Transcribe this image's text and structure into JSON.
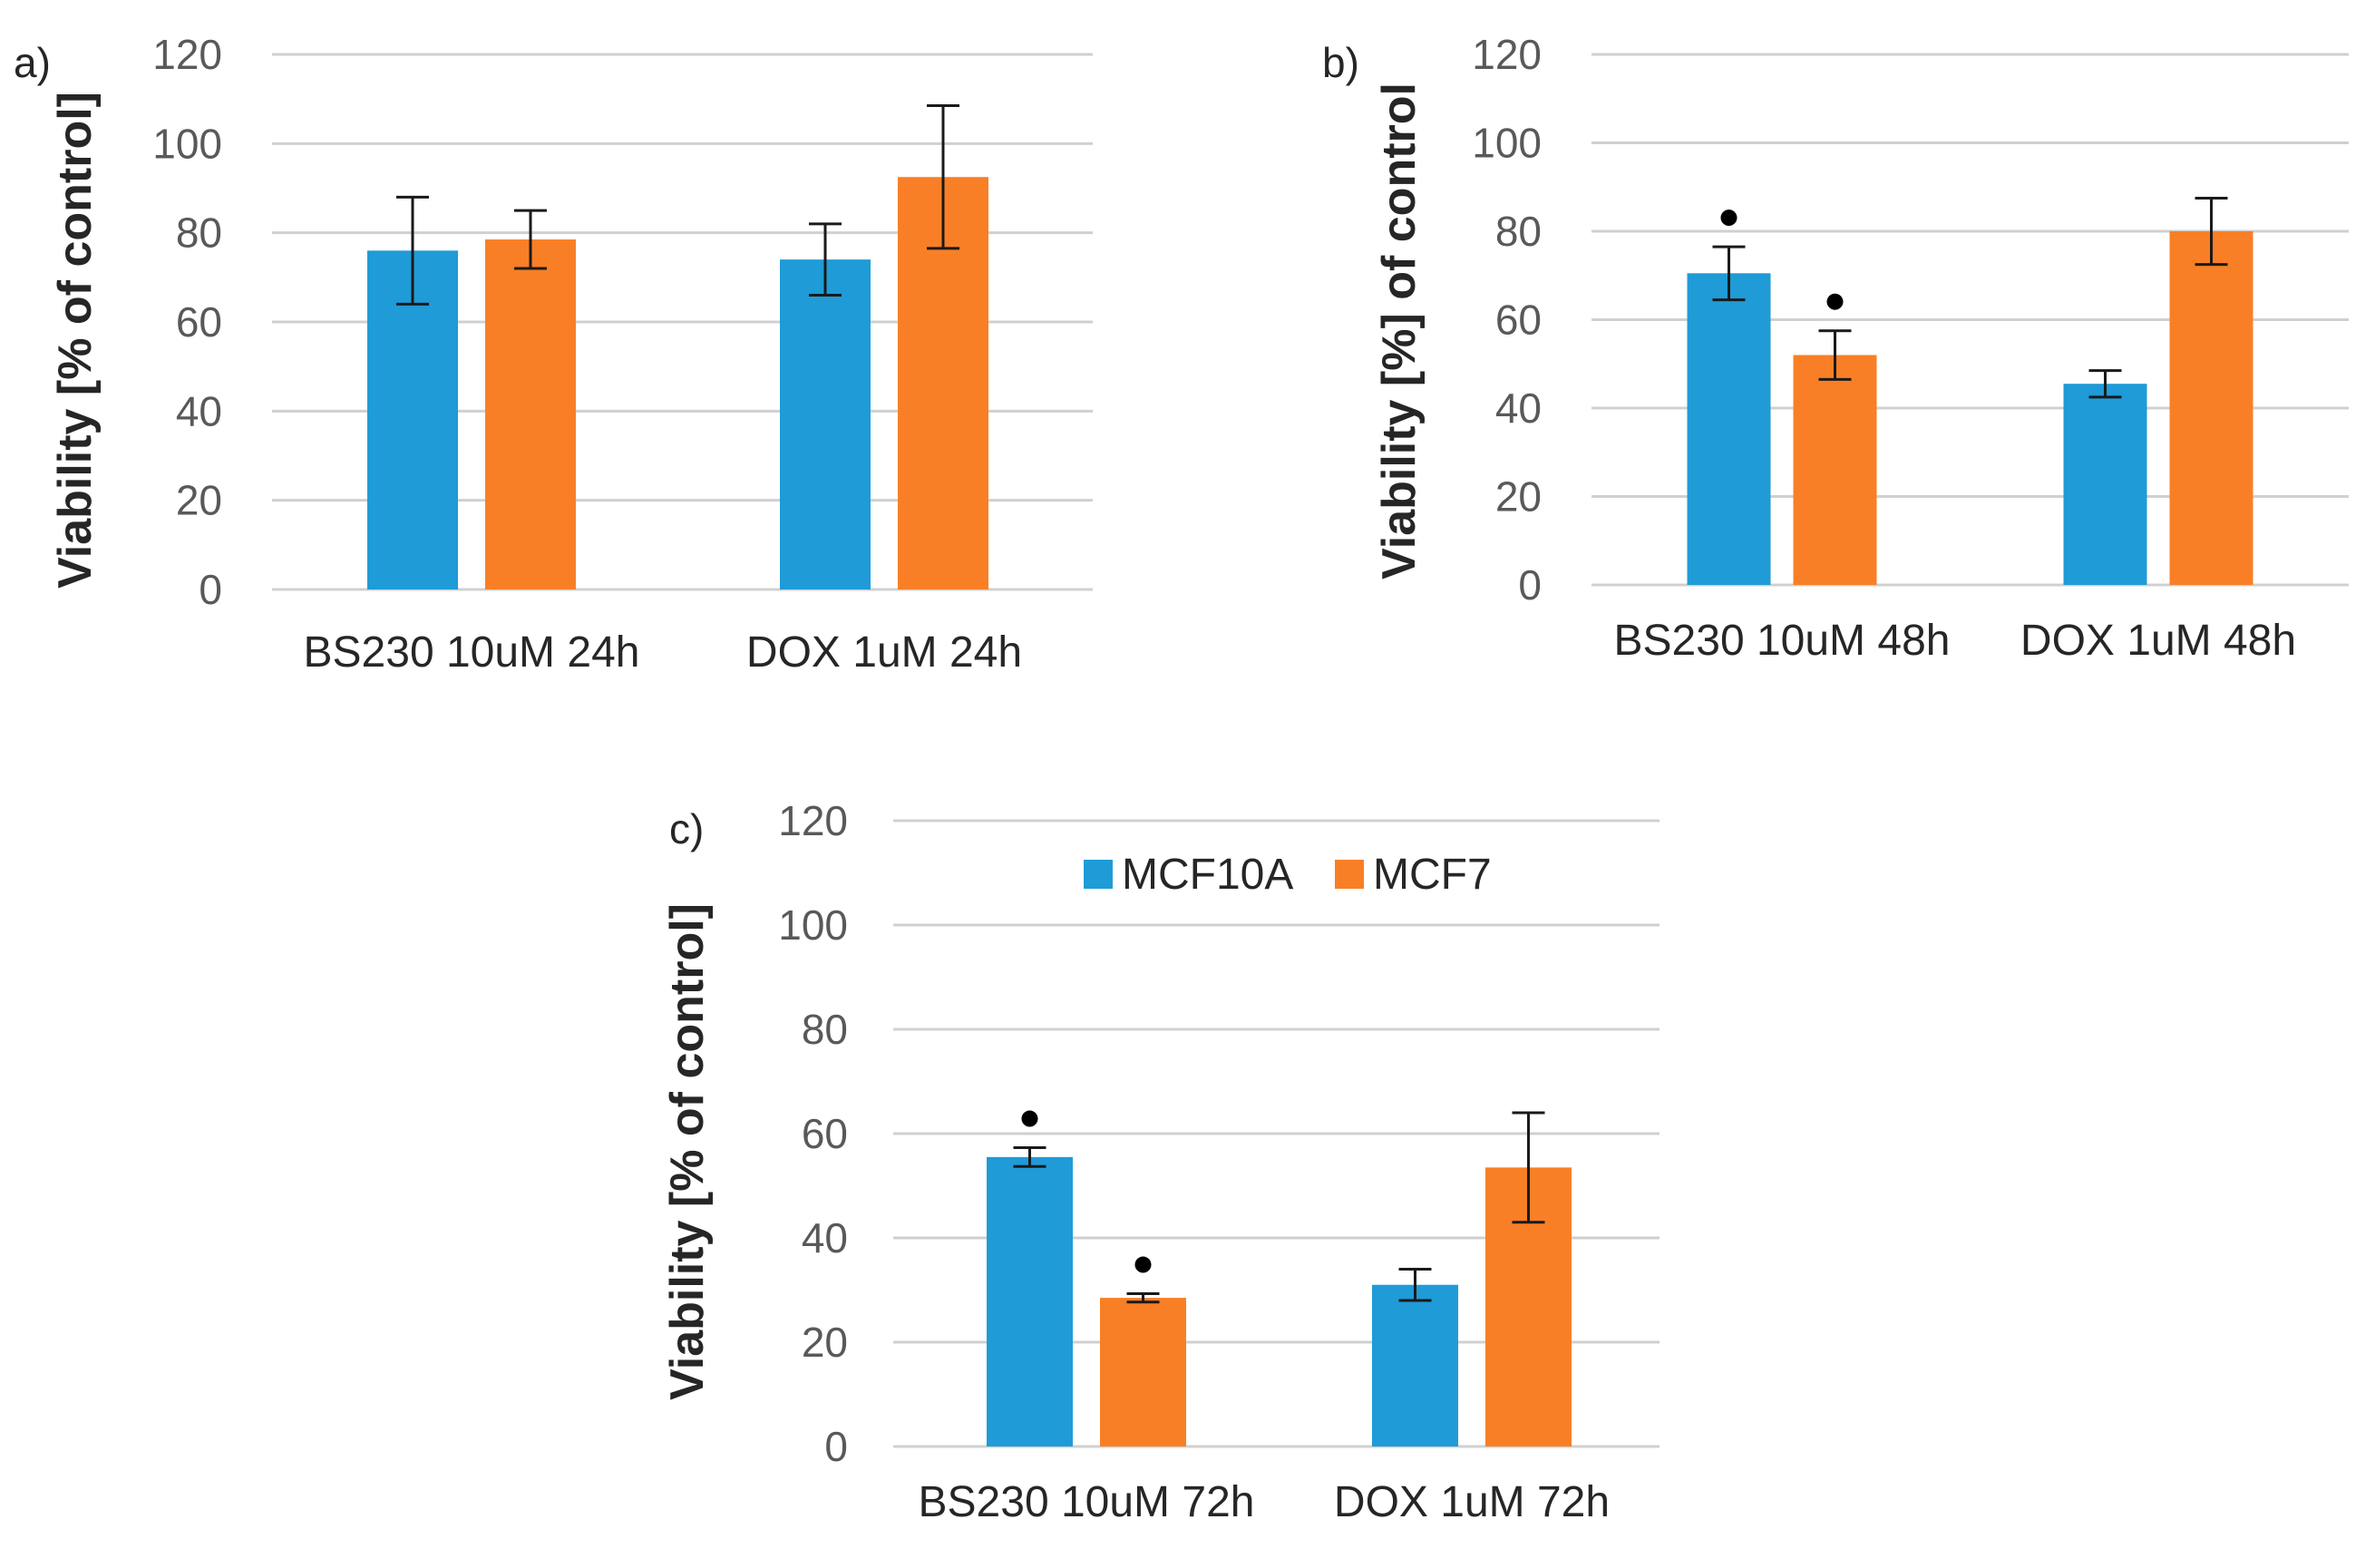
{
  "colors": {
    "MCF10A": "#1f9bd7",
    "MCF7": "#f97f26"
  },
  "legend": {
    "items": [
      {
        "name": "MCF10A",
        "color": "#1f9bd7"
      },
      {
        "name": "MCF7",
        "color": "#f97f26"
      }
    ]
  },
  "chart_data": [
    {
      "type": "bar",
      "panel": "a)",
      "ylabel": "Viability [% of control]",
      "ylim": [
        0,
        120
      ],
      "yticks": [
        "0",
        "20",
        "40",
        "60",
        "80",
        "100",
        "120"
      ],
      "grid": true,
      "categories": [
        "BS230 10uM 24h",
        "DOX 1uM 24h"
      ],
      "series": [
        {
          "name": "MCF10A",
          "values": [
            76,
            74
          ],
          "errors": [
            12,
            8
          ],
          "significant": [
            false,
            false
          ]
        },
        {
          "name": "MCF7",
          "values": [
            78.5,
            92.5
          ],
          "errors": [
            6.5,
            16
          ],
          "significant": [
            false,
            false
          ]
        }
      ]
    },
    {
      "type": "bar",
      "panel": "b)",
      "ylabel": "Viability [%] of control",
      "ylim": [
        0,
        120
      ],
      "yticks": [
        "0",
        "20",
        "40",
        "60",
        "80",
        "100",
        "120"
      ],
      "grid": true,
      "categories": [
        "BS230 10uM 48h",
        "DOX 1uM 48h"
      ],
      "series": [
        {
          "name": "MCF10A",
          "values": [
            70.5,
            45.5
          ],
          "errors": [
            6,
            3
          ],
          "significant": [
            true,
            false
          ]
        },
        {
          "name": "MCF7",
          "values": [
            52,
            80
          ],
          "errors": [
            5.5,
            7.5
          ],
          "significant": [
            true,
            false
          ]
        }
      ]
    },
    {
      "type": "bar",
      "panel": "c)",
      "ylabel": "Viability [% of control]",
      "ylim": [
        0,
        120
      ],
      "yticks": [
        "0",
        "20",
        "40",
        "60",
        "80",
        "100",
        "120"
      ],
      "grid": true,
      "legend": "top-center",
      "categories": [
        "BS230 10uM 72h",
        "DOX 1uM 72h"
      ],
      "series": [
        {
          "name": "MCF10A",
          "values": [
            55.5,
            31
          ],
          "errors": [
            1.8,
            3
          ],
          "significant": [
            true,
            false
          ]
        },
        {
          "name": "MCF7",
          "values": [
            28.5,
            53.5
          ],
          "errors": [
            0.8,
            10.5
          ],
          "significant": [
            true,
            false
          ]
        }
      ]
    }
  ]
}
